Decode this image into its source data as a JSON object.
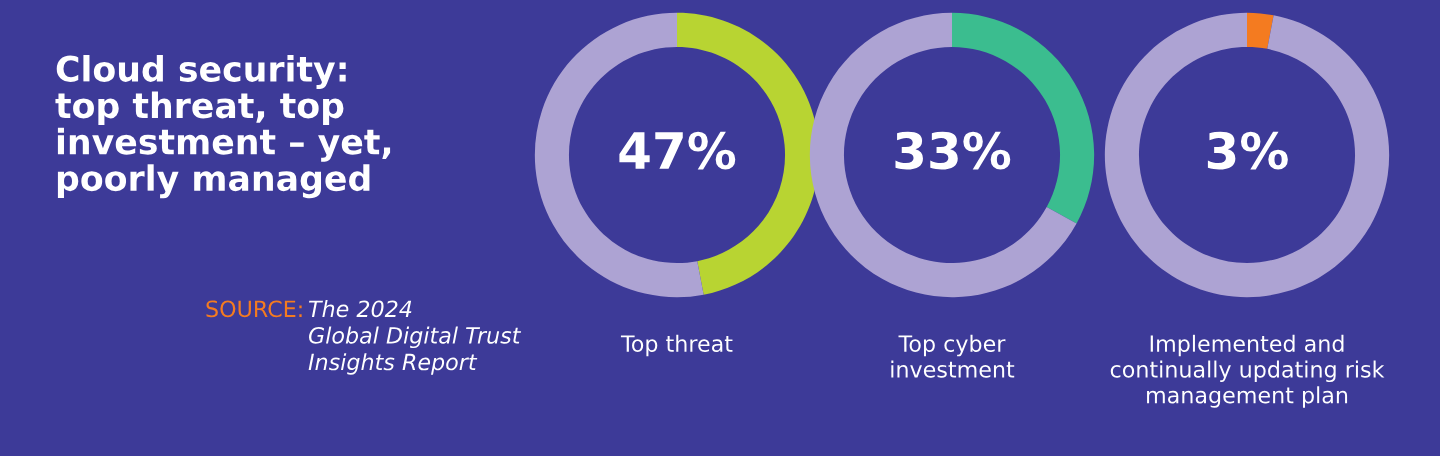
{
  "chart_data": [
    {
      "type": "donut",
      "title": "Cloud security:\ntop threat, top\ninvestment – yet,\npoorly managed",
      "annotations": [
        "SOURCE:",
        "The 2024\nGlobal Digital Trust\nInsights Report"
      ],
      "xlabel": "Top threat",
      "categories": [
        null,
        null
      ],
      "values": [
        47,
        53
      ],
      "colors": [
        "#b8d432",
        "#ada3d3"
      ],
      "value_labels": [
        "47%",
        null
      ]
    },
    {
      "type": "donut",
      "xlabel": "Top cyber\ninvestment",
      "categories": [
        null,
        null
      ],
      "values": [
        33,
        67
      ],
      "colors": [
        "#3bbd8f",
        "#ada3d3"
      ],
      "value_labels": [
        "33%",
        null
      ]
    },
    {
      "type": "donut",
      "xlabel": "Implemented and\ncontinually updating risk\nmanagement plan",
      "categories": [
        null,
        null
      ],
      "values": [
        3,
        97
      ],
      "colors": [
        "#f47b20",
        "#ada3d3"
      ],
      "value_labels": [
        "3%",
        null
      ]
    }
  ]
}
